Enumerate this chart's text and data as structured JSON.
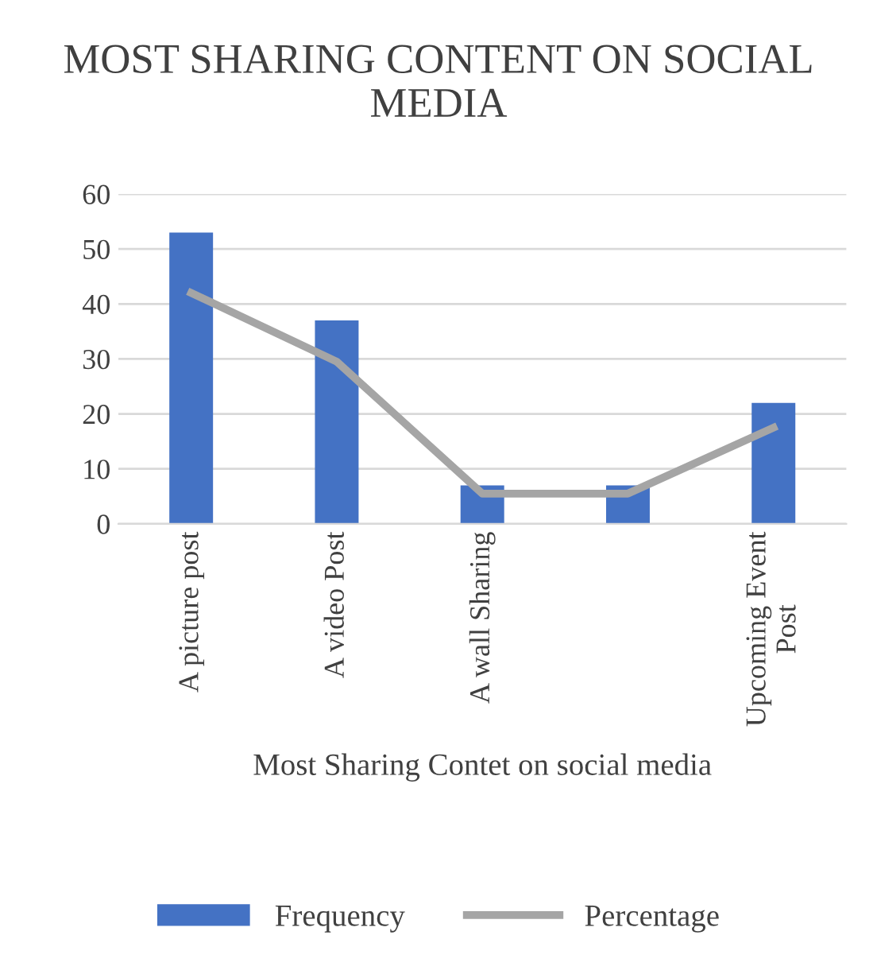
{
  "chart_data": {
    "type": "bar",
    "title": "MOST SHARING CONTENT ON SOCIAL MEDIA",
    "xlabel": "Most Sharing Contet on social media",
    "categories": [
      "A picture post",
      "A video Post",
      "A wall Sharing",
      null,
      "Upcoming Event\nPost"
    ],
    "series": [
      {
        "name": "Frequency",
        "color": "#4472c4",
        "values": [
          53,
          37,
          7,
          7,
          22
        ]
      },
      {
        "name": "Percentage",
        "type": "line",
        "color": "#a5a5a5",
        "values": [
          42,
          29.5,
          5.5,
          5.5,
          17.5
        ]
      }
    ],
    "ylim": [
      0,
      60
    ],
    "yticks": [
      0,
      10,
      20,
      30,
      40,
      50,
      60
    ],
    "grid": "y",
    "legend": "bottom",
    "marker": "none",
    "line_style": "solid"
  }
}
